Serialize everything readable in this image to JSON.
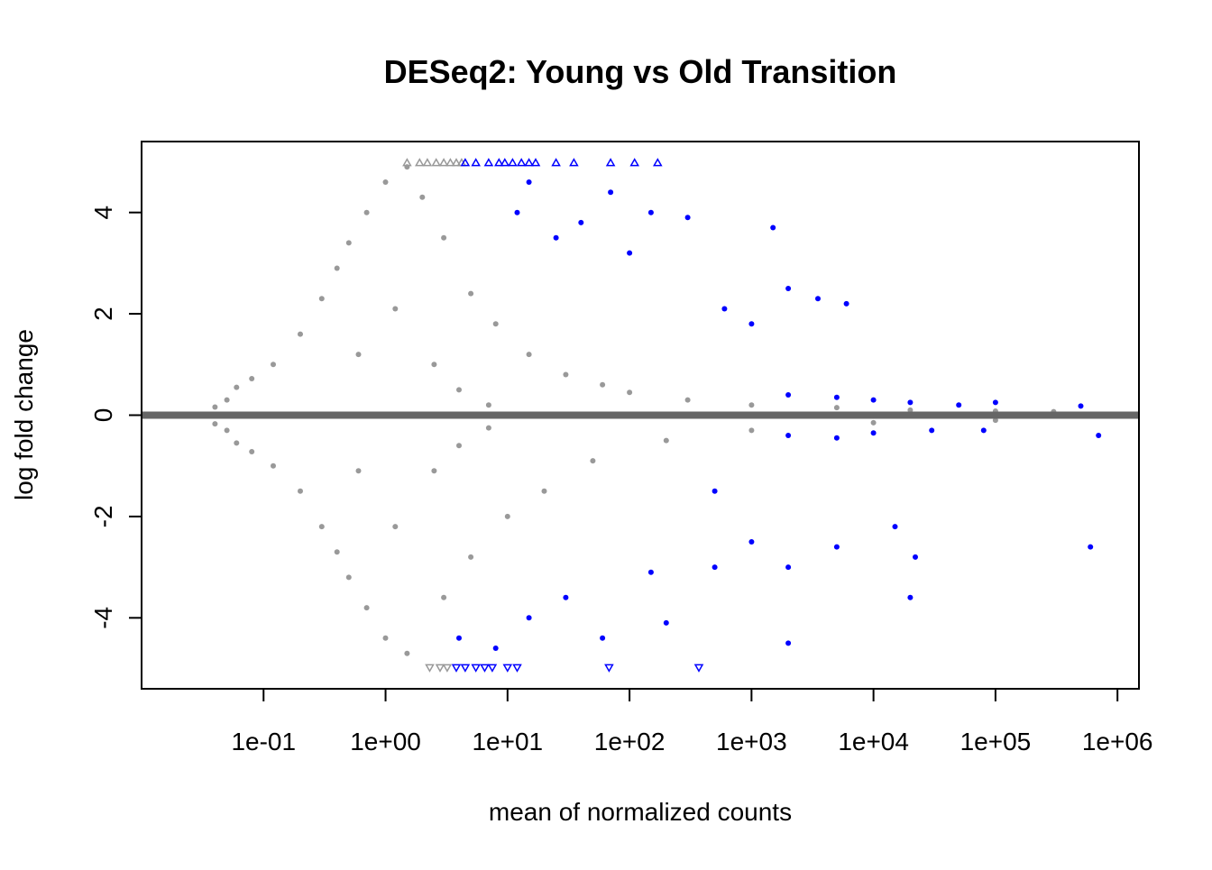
{
  "chart_data": {
    "type": "scatter",
    "title": "DESeq2: Young vs Old Transition",
    "xlabel": "mean of normalized counts",
    "ylabel": "log fold change",
    "x_scale": "log10",
    "xlim": [
      0.01,
      1500000
    ],
    "ylim": [
      -5.4,
      5.4
    ],
    "x_ticks": [
      {
        "value": 0.1,
        "label": "1e-01"
      },
      {
        "value": 1,
        "label": "1e+00"
      },
      {
        "value": 10,
        "label": "1e+01"
      },
      {
        "value": 100,
        "label": "1e+02"
      },
      {
        "value": 1000,
        "label": "1e+03"
      },
      {
        "value": 10000,
        "label": "1e+04"
      },
      {
        "value": 100000,
        "label": "1e+05"
      },
      {
        "value": 1000000,
        "label": "1e+06"
      }
    ],
    "y_ticks": [
      {
        "value": -4,
        "label": "-4"
      },
      {
        "value": -2,
        "label": "-2"
      },
      {
        "value": 0,
        "label": "0"
      },
      {
        "value": 2,
        "label": "2"
      },
      {
        "value": 4,
        "label": "4"
      }
    ],
    "reference_line": {
      "y": 0,
      "color": "#666666"
    },
    "grid": false,
    "legend": "none",
    "colors": {
      "significant": "#0000ff",
      "not_significant": "#999999"
    },
    "series": [
      {
        "significant": false,
        "points": [
          [
            0.03,
            0.0
          ],
          [
            0.04,
            0.16
          ],
          [
            0.04,
            -0.17
          ],
          [
            0.05,
            0.3
          ],
          [
            0.05,
            -0.3
          ],
          [
            0.06,
            0.55
          ],
          [
            0.06,
            -0.55
          ],
          [
            0.08,
            0.72
          ],
          [
            0.08,
            -0.72
          ],
          [
            0.12,
            1.0
          ],
          [
            0.12,
            -1.0
          ],
          [
            0.2,
            1.6
          ],
          [
            0.2,
            -1.5
          ],
          [
            0.3,
            2.3
          ],
          [
            0.3,
            -2.2
          ],
          [
            0.4,
            2.9
          ],
          [
            0.4,
            -2.7
          ],
          [
            0.5,
            3.4
          ],
          [
            0.5,
            -3.2
          ],
          [
            0.7,
            4.0
          ],
          [
            0.7,
            -3.8
          ],
          [
            1.0,
            4.6
          ],
          [
            1.0,
            -4.4
          ],
          [
            1.5,
            4.9
          ],
          [
            2.0,
            4.3
          ],
          [
            3.0,
            3.5
          ],
          [
            5.0,
            2.4
          ],
          [
            8.0,
            1.8
          ],
          [
            15.0,
            1.2
          ],
          [
            30.0,
            0.8
          ],
          [
            60.0,
            0.6
          ],
          [
            100.0,
            0.45
          ],
          [
            300.0,
            0.3
          ],
          [
            1000.0,
            0.2
          ],
          [
            5000.0,
            0.15
          ],
          [
            20000.0,
            0.1
          ],
          [
            100000.0,
            0.08
          ],
          [
            300000.0,
            0.07
          ],
          [
            1.5,
            -4.7
          ],
          [
            3.0,
            -3.6
          ],
          [
            5.0,
            -2.8
          ],
          [
            10.0,
            -2.0
          ],
          [
            20.0,
            -1.5
          ],
          [
            50.0,
            -0.9
          ],
          [
            200.0,
            -0.5
          ],
          [
            1000.0,
            -0.3
          ],
          [
            10000.0,
            -0.15
          ],
          [
            100000.0,
            -0.1
          ],
          [
            0.6,
            1.2
          ],
          [
            0.6,
            -1.1
          ],
          [
            1.2,
            2.1
          ],
          [
            1.2,
            -2.2
          ],
          [
            2.5,
            1.0
          ],
          [
            2.5,
            -1.1
          ],
          [
            4.0,
            0.5
          ],
          [
            4.0,
            -0.6
          ],
          [
            7.0,
            0.2
          ],
          [
            7.0,
            -0.25
          ]
        ]
      },
      {
        "significant": true,
        "points": [
          [
            12.0,
            4.0
          ],
          [
            15.0,
            4.6
          ],
          [
            25.0,
            3.5
          ],
          [
            40.0,
            3.8
          ],
          [
            70.0,
            4.4
          ],
          [
            100.0,
            3.2
          ],
          [
            150.0,
            4.0
          ],
          [
            300.0,
            3.9
          ],
          [
            1500.0,
            3.7
          ],
          [
            600.0,
            2.1
          ],
          [
            1000.0,
            1.8
          ],
          [
            2000.0,
            2.5
          ],
          [
            3500.0,
            2.3
          ],
          [
            6000.0,
            2.2
          ],
          [
            2000.0,
            0.4
          ],
          [
            5000.0,
            0.35
          ],
          [
            10000.0,
            0.3
          ],
          [
            20000.0,
            0.25
          ],
          [
            50000.0,
            0.2
          ],
          [
            100000.0,
            0.25
          ],
          [
            500000.0,
            0.18
          ],
          [
            2000.0,
            -0.4
          ],
          [
            5000.0,
            -0.45
          ],
          [
            10000.0,
            -0.35
          ],
          [
            30000.0,
            -0.3
          ],
          [
            80000.0,
            -0.3
          ],
          [
            700000.0,
            -0.4
          ],
          [
            500.0,
            -1.5
          ],
          [
            1000.0,
            -2.5
          ],
          [
            2000.0,
            -3.0
          ],
          [
            5000.0,
            -2.6
          ],
          [
            15000.0,
            -2.2
          ],
          [
            20000.0,
            -3.6
          ],
          [
            22000.0,
            -2.8
          ],
          [
            600000.0,
            -2.6
          ],
          [
            30.0,
            -3.6
          ],
          [
            60.0,
            -4.4
          ],
          [
            200.0,
            -4.1
          ],
          [
            2000.0,
            -4.5
          ],
          [
            8.0,
            -4.6
          ],
          [
            15.0,
            -4.0
          ],
          [
            4.0,
            -4.4
          ],
          [
            500.0,
            -3.0
          ],
          [
            150.0,
            -3.1
          ]
        ]
      }
    ],
    "outliers": [
      {
        "direction": "up",
        "significant": false,
        "x": [
          1.5,
          1.9,
          2.2,
          2.6,
          3.0,
          3.4,
          3.8,
          4.2
        ]
      },
      {
        "direction": "up",
        "significant": true,
        "x": [
          4.5,
          5.5,
          7.0,
          8.5,
          9.5,
          11.0,
          13.0,
          15.0,
          17.0,
          25.0,
          35.0,
          70.0,
          110.0,
          170.0
        ]
      },
      {
        "direction": "down",
        "significant": false,
        "x": [
          2.3,
          2.8,
          3.2
        ]
      },
      {
        "direction": "down",
        "significant": true,
        "x": [
          3.8,
          4.5,
          5.5,
          6.5,
          7.5,
          10.0,
          12.0,
          68.0,
          370.0
        ]
      }
    ]
  }
}
